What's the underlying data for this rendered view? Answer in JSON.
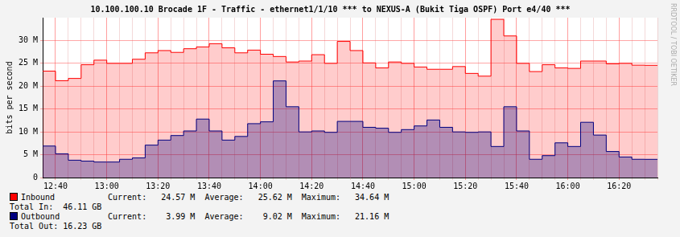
{
  "chart_data": {
    "type": "area",
    "title": "10.100.100.10 Brocade 1F - Traffic - ethernet1/1/10 *** to NEXUS-A (Bukit Tiga OSPF) Port e4/40 ***",
    "y_label": "bits per second",
    "categories": [
      null,
      "12:40",
      null,
      null,
      null,
      "13:00",
      null,
      null,
      null,
      "13:20",
      null,
      null,
      null,
      "13:40",
      null,
      null,
      null,
      "14:00",
      null,
      null,
      null,
      "14:20",
      null,
      null,
      null,
      "14:40",
      null,
      null,
      null,
      "15:00",
      null,
      null,
      null,
      "15:20",
      null,
      null,
      null,
      "15:40",
      null,
      null,
      null,
      "16:00",
      null,
      null,
      null,
      "16:20",
      null,
      null,
      null
    ],
    "series": [
      {
        "name": "Inbound",
        "color": "#ff0000",
        "values": [
          23.3,
          21.2,
          21.7,
          24.7,
          25.7,
          25,
          25,
          25.9,
          27.3,
          27.8,
          27.4,
          28.2,
          28.6,
          29.3,
          28.4,
          27.3,
          27.9,
          27,
          26.5,
          25.3,
          25.5,
          26.9,
          25,
          29.8,
          27.8,
          25.1,
          24,
          25.3,
          25,
          24.2,
          23.7,
          23.7,
          24.3,
          22.8,
          22.2,
          34.64,
          31,
          25,
          23.2,
          24.7,
          24,
          23.9,
          25.5,
          25.5,
          24.9,
          25,
          24.6,
          24.57,
          24.57
        ],
        "legend_text": "Current:   24.57 M  Average:   25.62 M  Maximum:   34.64 M",
        "total": "Total In:  46.11 GB"
      },
      {
        "name": "Outbound",
        "color": "#000080",
        "values": [
          6.9,
          5.2,
          3.8,
          3.6,
          3.4,
          3.4,
          4.0,
          4.3,
          7.1,
          8.2,
          9.2,
          10.2,
          12.8,
          10.2,
          8.2,
          9.0,
          11.8,
          12.2,
          21.16,
          15.5,
          10.0,
          10.2,
          9.9,
          12.3,
          12.3,
          11.0,
          10.8,
          9.9,
          10.5,
          11.3,
          12.6,
          11.0,
          10.0,
          9.9,
          10.0,
          6.8,
          15.5,
          10.2,
          4.0,
          4.8,
          7.6,
          6.8,
          12.1,
          9.3,
          5.7,
          4.5,
          4.0,
          3.99,
          3.99
        ],
        "legend_text": "Current:    3.99 M  Average:    9.02 M  Maximum:   21.16 M",
        "total": "Total Out: 16.23 GB"
      }
    ],
    "ylim": [
      0,
      35
    ],
    "yticks": [
      0,
      {
        "value": 5,
        "label": "5 M"
      },
      {
        "value": 10,
        "label": "10 M"
      },
      {
        "value": 15,
        "label": "15 M"
      },
      {
        "value": 20,
        "label": "20 M"
      },
      {
        "value": 25,
        "label": "25 M"
      },
      {
        "value": 30,
        "label": "30 M"
      }
    ],
    "grid": true,
    "legend": "bottom left",
    "line_style": "step",
    "annotations": [
      "RRDTOOL / TOBI OETIKER"
    ]
  }
}
